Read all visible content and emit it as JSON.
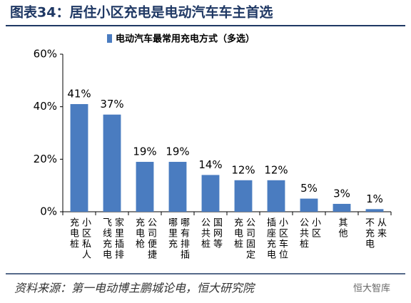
{
  "chart_data": {
    "type": "bar",
    "title": "图表34：居住小区充电是电动汽车车主首选",
    "categories": [
      "小区私人\n充电桩",
      "家里插排\n飞线充电",
      "公司便捷\n充电枪",
      "哪有排插\n哪里充",
      "国网等\n公共桩",
      "公司固定\n充电桩",
      "小区车位\n插座充电",
      "小区\n公共桩",
      "其他",
      "从来\n不充电"
    ],
    "series": [
      {
        "name": "电动汽车最常用充电方式（多选）",
        "color": "#4a7cc0",
        "values": [
          41,
          37,
          19,
          19,
          14,
          12,
          12,
          5,
          3,
          1
        ],
        "value_labels": [
          "41%",
          "37%",
          "19%",
          "19%",
          "14%",
          "12%",
          "12%",
          "5%",
          "3%",
          "1%"
        ]
      }
    ],
    "ylim": [
      0,
      60
    ],
    "yticks": [
      {
        "value": 0,
        "label": "0%"
      },
      {
        "value": 20,
        "label": "20%"
      },
      {
        "value": 40,
        "label": "40%"
      },
      {
        "value": 60,
        "label": "60%"
      }
    ],
    "source": "资料来源：第一电动博主鹏城论电，恒大研究院",
    "watermark": "恒大智库"
  }
}
